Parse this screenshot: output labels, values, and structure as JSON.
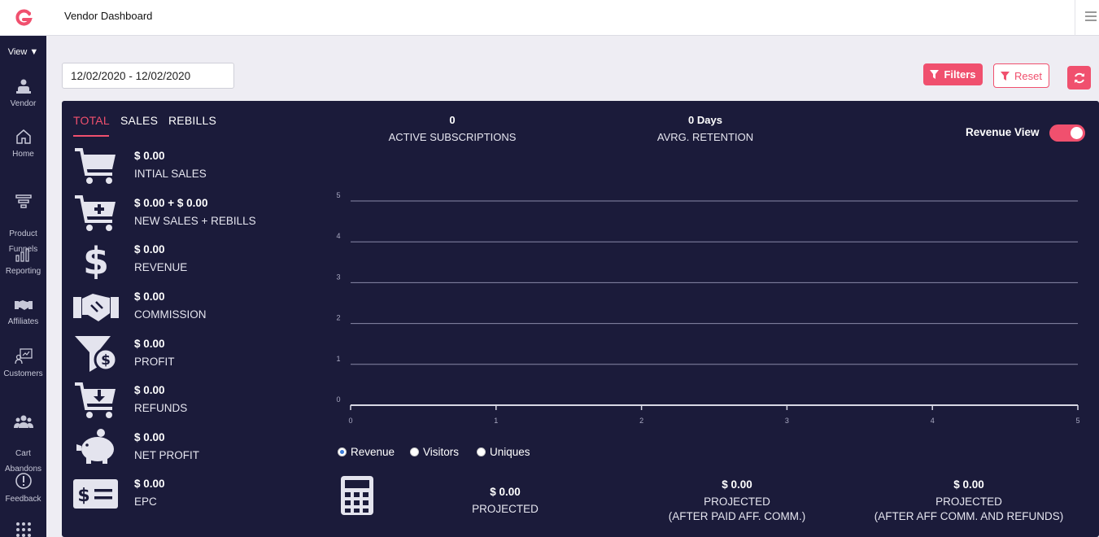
{
  "header": {
    "title": "Vendor Dashboard"
  },
  "sidebar": {
    "view_label": "View ▼",
    "items": [
      {
        "label": "Vendor",
        "icon": "vendor-icon"
      },
      {
        "label": "Home",
        "icon": "home-icon"
      },
      {
        "label": "Product\nFunnels",
        "icon": "funnel-icon"
      },
      {
        "label": "Reporting",
        "icon": "bar-chart-icon"
      },
      {
        "label": "Affiliates",
        "icon": "handshake-icon"
      },
      {
        "label": "Customers",
        "icon": "customers-icon"
      },
      {
        "label": "Cart\nAbandons",
        "icon": "users-icon"
      },
      {
        "label": "Feedback",
        "icon": "feedback-icon"
      }
    ]
  },
  "controls": {
    "date_range": "12/02/2020 - 12/02/2020",
    "filters_label": "Filters",
    "reset_label": "Reset"
  },
  "tabs": [
    "TOTAL",
    "SALES",
    "REBILLS"
  ],
  "metrics": [
    {
      "value": "$ 0.00",
      "label": "INTIAL SALES",
      "icon": "cart-icon"
    },
    {
      "value": "$ 0.00 + $ 0.00",
      "label": "NEW SALES + REBILLS",
      "icon": "cart-plus-icon"
    },
    {
      "value": "$ 0.00",
      "label": "REVENUE",
      "icon": "dollar-icon"
    },
    {
      "value": "$ 0.00",
      "label": "COMMISSION",
      "icon": "handshake-icon"
    },
    {
      "value": "$ 0.00",
      "label": "PROFIT",
      "icon": "funnel-dollar-icon"
    },
    {
      "value": "$ 0.00",
      "label": "REFUNDS",
      "icon": "cart-download-icon"
    },
    {
      "value": "$ 0.00",
      "label": "NET PROFIT",
      "icon": "piggy-bank-icon"
    },
    {
      "value": "$ 0.00",
      "label": "EPC",
      "icon": "check-icon"
    }
  ],
  "stats": {
    "active_subscriptions": {
      "value": "0",
      "label": "ACTIVE SUBSCRIPTIONS"
    },
    "avg_retention": {
      "value": "0 Days",
      "label": "AVRG. RETENTION"
    }
  },
  "revenue_view": {
    "label": "Revenue View",
    "on": true
  },
  "chart_data": {
    "type": "line",
    "x": [
      0,
      1,
      2,
      3,
      4,
      5
    ],
    "series": [],
    "xlim": [
      0,
      5
    ],
    "ylim": [
      0,
      5
    ],
    "xticks": [
      "0",
      "1",
      "2",
      "3",
      "4",
      "5"
    ],
    "yticks": [
      "0",
      "1",
      "2",
      "3",
      "4",
      "5"
    ],
    "grid": true,
    "colors": {
      "grid": "#8a8aa8",
      "axis": "#d8d8e4",
      "tick_text": "#a9a9c2"
    }
  },
  "chart_options": [
    {
      "label": "Revenue",
      "selected": true
    },
    {
      "label": "Visitors",
      "selected": false
    },
    {
      "label": "Uniques",
      "selected": false
    }
  ],
  "projections": [
    {
      "value": "$ 0.00",
      "label": "PROJECTED",
      "sub": ""
    },
    {
      "value": "$ 0.00",
      "label": "PROJECTED",
      "sub": "(AFTER PAID AFF. COMM.)"
    },
    {
      "value": "$ 0.00",
      "label": "PROJECTED",
      "sub": "(AFTER AFF COMM. AND REFUNDS)"
    }
  ],
  "colors": {
    "accent": "#f0506e",
    "panel": "#1b1b3a",
    "sidebar": "#1b1b3a",
    "background": "#eeedf3"
  }
}
